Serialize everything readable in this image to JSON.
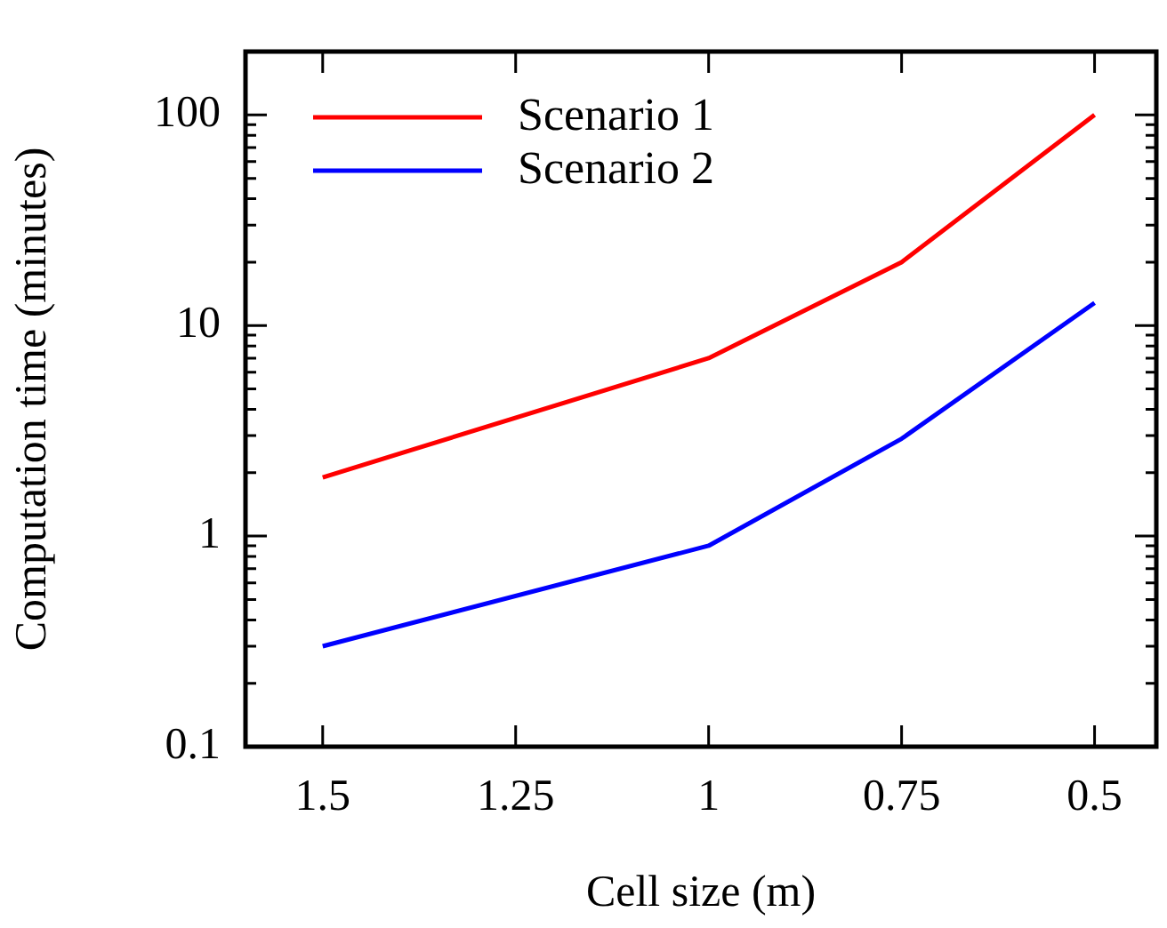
{
  "chart_data": {
    "type": "line",
    "xlabel": "Cell size (m)",
    "ylabel": "Computation time (minutes)",
    "x": [
      1.5,
      1,
      0.75,
      0.5
    ],
    "series": [
      {
        "name": "Scenario 1",
        "color": "#ff0000",
        "values": [
          1.9,
          7,
          20,
          100
        ]
      },
      {
        "name": "Scenario 2",
        "color": "#0000ff",
        "values": [
          0.3,
          0.9,
          2.9,
          12.8
        ]
      }
    ],
    "xlim": [
      1.6,
      0.42
    ],
    "xticks": [
      1.5,
      1.25,
      1,
      0.75,
      0.5
    ],
    "ylim": [
      0.1,
      200
    ],
    "yticks": [
      0.1,
      {
        "value": 0.2,
        "label": null
      },
      {
        "value": 0.3,
        "label": null
      },
      {
        "value": 0.4,
        "label": null
      },
      {
        "value": 0.5,
        "label": null
      },
      {
        "value": 0.6,
        "label": null
      },
      {
        "value": 0.7,
        "label": null
      },
      {
        "value": 0.8,
        "label": null
      },
      {
        "value": 0.9,
        "label": null
      },
      1,
      {
        "value": 2,
        "label": null
      },
      {
        "value": 3,
        "label": null
      },
      {
        "value": 4,
        "label": null
      },
      {
        "value": 5,
        "label": null
      },
      {
        "value": 6,
        "label": null
      },
      {
        "value": 7,
        "label": null
      },
      {
        "value": 8,
        "label": null
      },
      {
        "value": 9,
        "label": null
      },
      10,
      {
        "value": 20,
        "label": null
      },
      {
        "value": 30,
        "label": null
      },
      {
        "value": 40,
        "label": null
      },
      {
        "value": 50,
        "label": null
      },
      {
        "value": 60,
        "label": null
      },
      {
        "value": 70,
        "label": null
      },
      {
        "value": 80,
        "label": null
      },
      {
        "value": 90,
        "label": null
      },
      100,
      {
        "value": 200,
        "label": null
      }
    ],
    "log": "y",
    "grid": false,
    "legend": "top left",
    "marker": "none",
    "line_style": "solid"
  }
}
